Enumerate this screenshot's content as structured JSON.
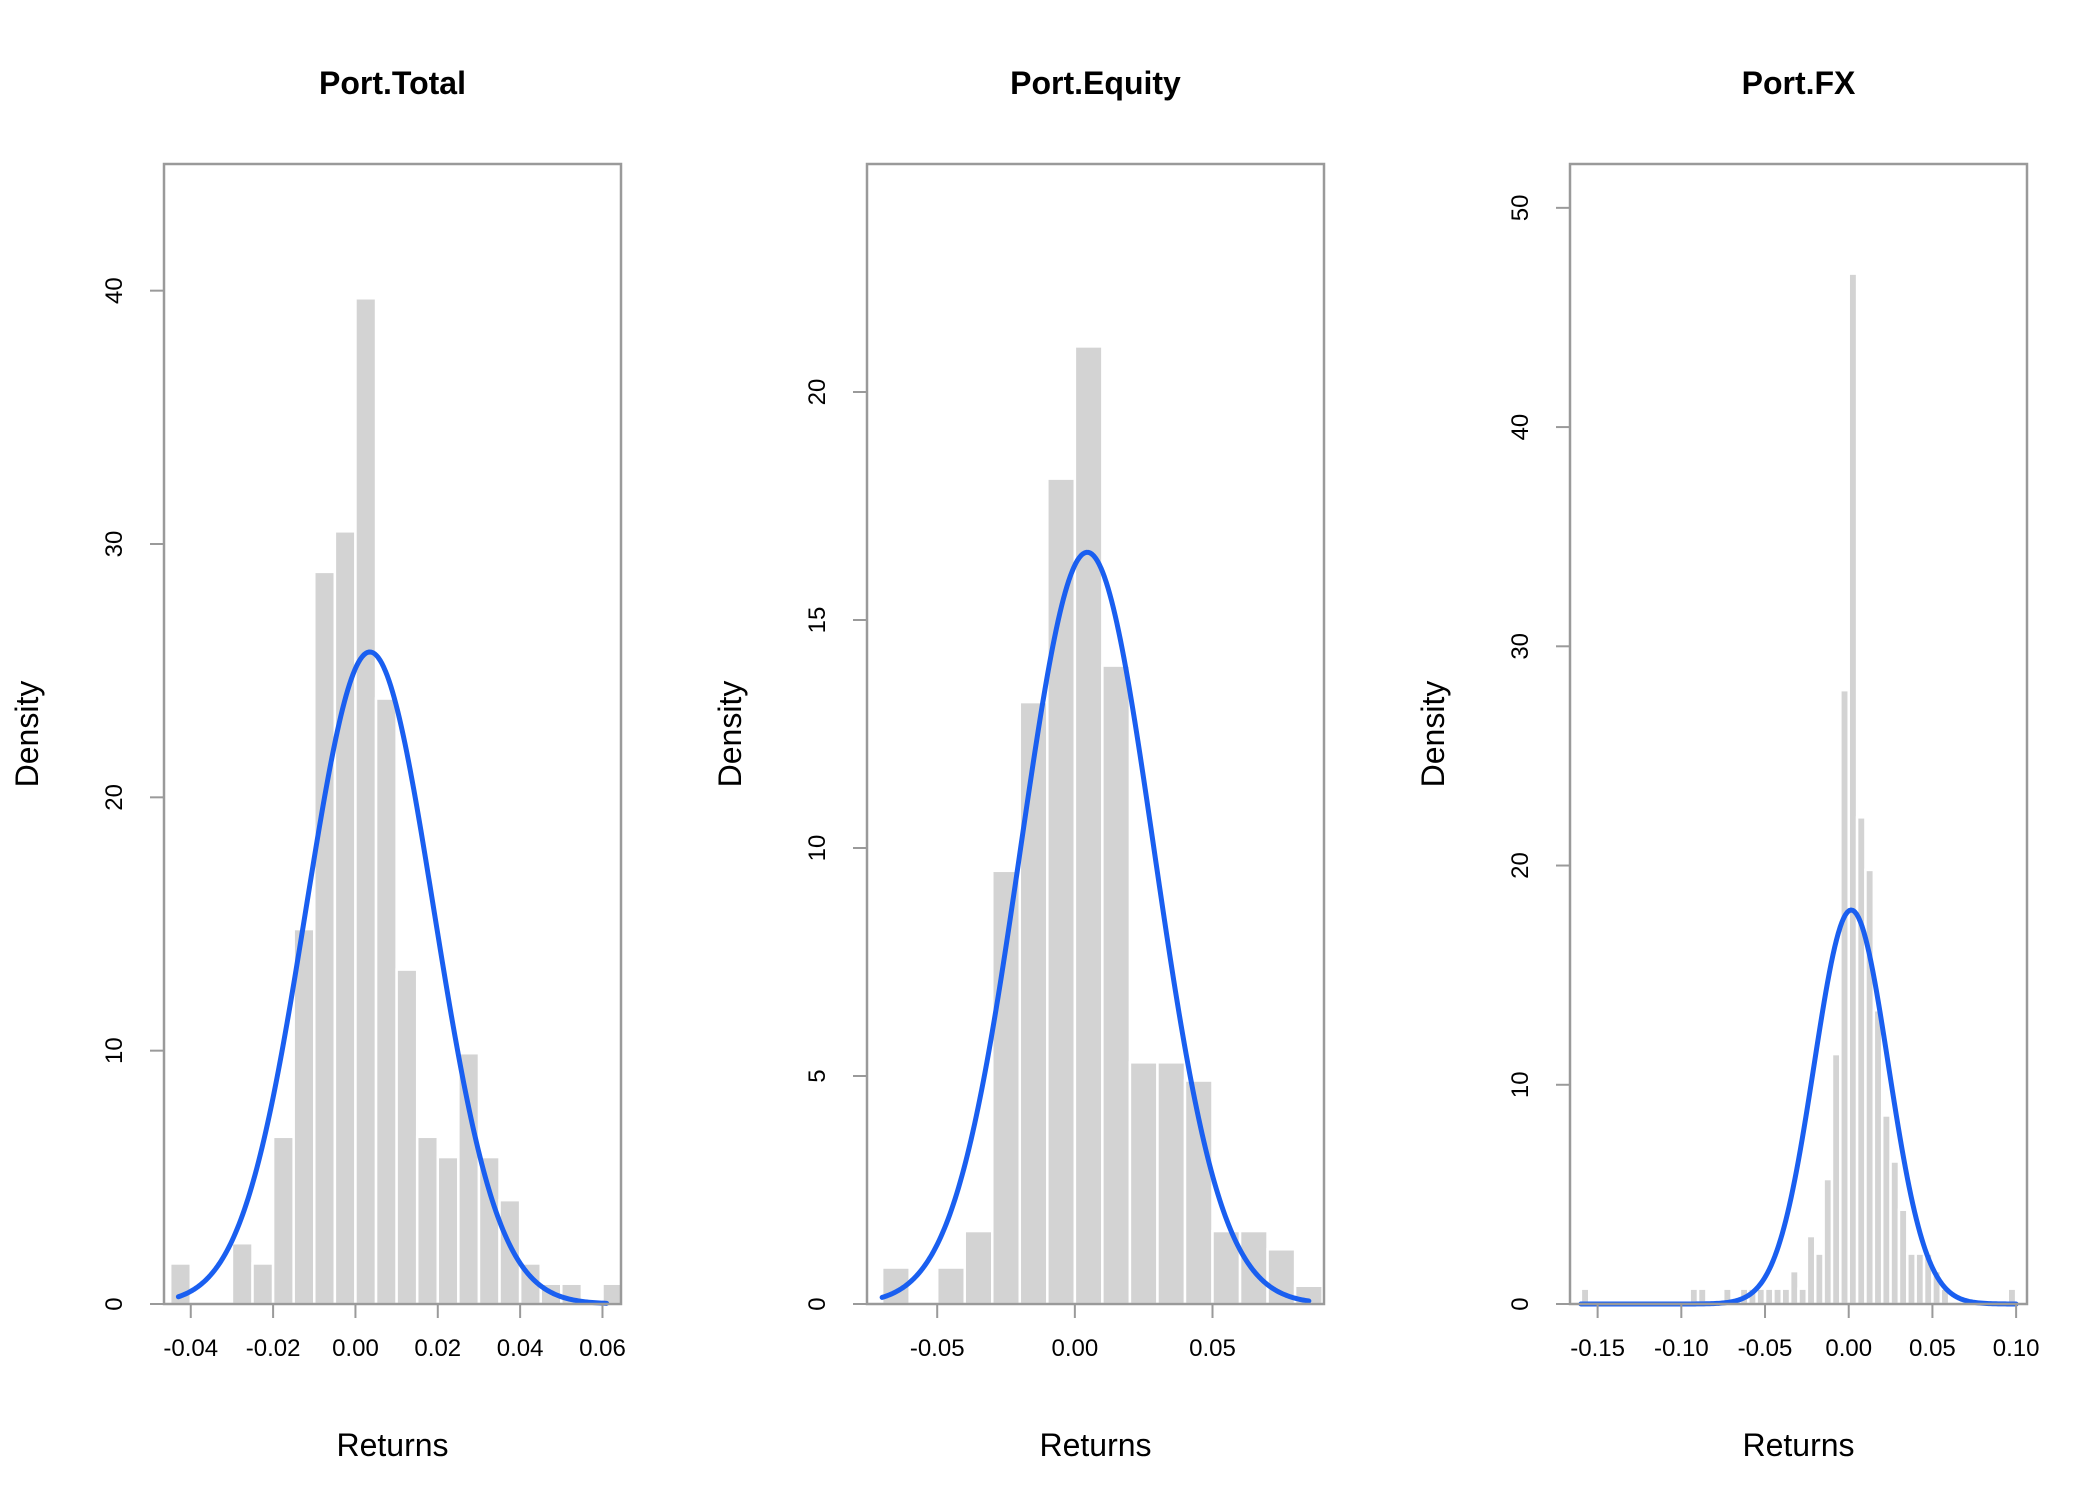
{
  "chart_data": [
    {
      "type": "bar",
      "title": "Port.Total",
      "xlabel": "Returns",
      "ylabel": "Density",
      "xlim": [
        -0.0465,
        0.0645
      ],
      "ylim": [
        0,
        45
      ],
      "x_ticks": [
        -0.04,
        -0.02,
        0.0,
        0.02,
        0.04,
        0.06
      ],
      "x_tick_labels": [
        "-0.04",
        "-0.02",
        "0.00",
        "0.02",
        "0.04",
        "0.06"
      ],
      "y_ticks": [
        0,
        10,
        20,
        30,
        40
      ],
      "y_tick_labels": [
        "0",
        "10",
        "20",
        "30",
        "40"
      ],
      "bin_width": 0.005,
      "bins": [
        {
          "x0": -0.045,
          "x1": -0.04,
          "density": 1.6
        },
        {
          "x0": -0.04,
          "x1": -0.035,
          "density": 0.0
        },
        {
          "x0": -0.035,
          "x1": -0.03,
          "density": 0.0
        },
        {
          "x0": -0.03,
          "x1": -0.025,
          "density": 2.4
        },
        {
          "x0": -0.025,
          "x1": -0.02,
          "density": 1.6
        },
        {
          "x0": -0.02,
          "x1": -0.015,
          "density": 6.6
        },
        {
          "x0": -0.015,
          "x1": -0.01,
          "density": 14.8
        },
        {
          "x0": -0.01,
          "x1": -0.005,
          "density": 28.9
        },
        {
          "x0": -0.005,
          "x1": 0.0,
          "density": 30.5
        },
        {
          "x0": 0.0,
          "x1": 0.005,
          "density": 39.7
        },
        {
          "x0": 0.005,
          "x1": 0.01,
          "density": 23.9
        },
        {
          "x0": 0.01,
          "x1": 0.015,
          "density": 13.2
        },
        {
          "x0": 0.015,
          "x1": 0.02,
          "density": 6.6
        },
        {
          "x0": 0.02,
          "x1": 0.025,
          "density": 5.8
        },
        {
          "x0": 0.025,
          "x1": 0.03,
          "density": 9.9
        },
        {
          "x0": 0.03,
          "x1": 0.035,
          "density": 5.8
        },
        {
          "x0": 0.035,
          "x1": 0.04,
          "density": 4.1
        },
        {
          "x0": 0.04,
          "x1": 0.045,
          "density": 1.6
        },
        {
          "x0": 0.045,
          "x1": 0.05,
          "density": 0.8
        },
        {
          "x0": 0.05,
          "x1": 0.055,
          "density": 0.8
        },
        {
          "x0": 0.055,
          "x1": 0.06,
          "density": 0.0
        },
        {
          "x0": 0.06,
          "x1": 0.065,
          "density": 0.8
        }
      ],
      "normal_fit": {
        "mean": 0.0035,
        "sd": 0.0155,
        "from": -0.043,
        "to": 0.061,
        "color": "#1a5ff0"
      }
    },
    {
      "type": "bar",
      "title": "Port.Equity",
      "xlabel": "Returns",
      "ylabel": "Density",
      "xlim": [
        -0.0755,
        0.0905
      ],
      "ylim": [
        0,
        25
      ],
      "x_ticks": [
        -0.05,
        0.0,
        0.05
      ],
      "x_tick_labels": [
        "-0.05",
        "0.00",
        "0.05"
      ],
      "y_ticks": [
        0,
        5,
        10,
        15,
        20
      ],
      "y_tick_labels": [
        "0",
        "5",
        "10",
        "15",
        "20"
      ],
      "bin_width": 0.01,
      "bins": [
        {
          "x0": -0.07,
          "x1": -0.06,
          "density": 0.8
        },
        {
          "x0": -0.06,
          "x1": -0.05,
          "density": 0.0
        },
        {
          "x0": -0.05,
          "x1": -0.04,
          "density": 0.8
        },
        {
          "x0": -0.04,
          "x1": -0.03,
          "density": 1.6
        },
        {
          "x0": -0.03,
          "x1": -0.02,
          "density": 9.5
        },
        {
          "x0": -0.02,
          "x1": -0.01,
          "density": 13.2
        },
        {
          "x0": -0.01,
          "x1": 0.0,
          "density": 18.1
        },
        {
          "x0": 0.0,
          "x1": 0.01,
          "density": 21.0
        },
        {
          "x0": 0.01,
          "x1": 0.02,
          "density": 14.0
        },
        {
          "x0": 0.02,
          "x1": 0.03,
          "density": 5.3
        },
        {
          "x0": 0.03,
          "x1": 0.04,
          "density": 5.3
        },
        {
          "x0": 0.04,
          "x1": 0.05,
          "density": 4.9
        },
        {
          "x0": 0.05,
          "x1": 0.06,
          "density": 1.6
        },
        {
          "x0": 0.06,
          "x1": 0.07,
          "density": 1.6
        },
        {
          "x0": 0.07,
          "x1": 0.08,
          "density": 1.2
        },
        {
          "x0": 0.08,
          "x1": 0.09,
          "density": 0.4
        }
      ],
      "normal_fit": {
        "mean": 0.0045,
        "sd": 0.0242,
        "from": -0.07,
        "to": 0.085,
        "color": "#1a5ff0"
      }
    },
    {
      "type": "bar",
      "title": "Port.FX",
      "xlabel": "Returns",
      "ylabel": "Density",
      "xlim": [
        -0.1665,
        0.1065
      ],
      "ylim": [
        0,
        52
      ],
      "x_ticks": [
        -0.15,
        -0.1,
        -0.05,
        0.0,
        0.05,
        0.1
      ],
      "x_tick_labels": [
        "-0.15",
        "-0.10",
        "-0.05",
        "0.00",
        "0.05",
        "0.10"
      ],
      "y_ticks": [
        0,
        10,
        20,
        30,
        40,
        50
      ],
      "y_tick_labels": [
        "0",
        "10",
        "20",
        "30",
        "40",
        "50"
      ],
      "bin_width": 0.005,
      "bins": [
        {
          "x0": -0.16,
          "x1": -0.155,
          "density": 0.7
        },
        {
          "x0": -0.095,
          "x1": -0.09,
          "density": 0.7
        },
        {
          "x0": -0.09,
          "x1": -0.085,
          "density": 0.7
        },
        {
          "x0": -0.075,
          "x1": -0.07,
          "density": 0.7
        },
        {
          "x0": -0.065,
          "x1": -0.06,
          "density": 0.7
        },
        {
          "x0": -0.06,
          "x1": -0.055,
          "density": 0.7
        },
        {
          "x0": -0.055,
          "x1": -0.05,
          "density": 0.7
        },
        {
          "x0": -0.05,
          "x1": -0.045,
          "density": 0.7
        },
        {
          "x0": -0.045,
          "x1": -0.04,
          "density": 0.7
        },
        {
          "x0": -0.04,
          "x1": -0.035,
          "density": 0.7
        },
        {
          "x0": -0.035,
          "x1": -0.03,
          "density": 1.5
        },
        {
          "x0": -0.03,
          "x1": -0.025,
          "density": 0.7
        },
        {
          "x0": -0.025,
          "x1": -0.02,
          "density": 3.1
        },
        {
          "x0": -0.02,
          "x1": -0.015,
          "density": 2.3
        },
        {
          "x0": -0.015,
          "x1": -0.01,
          "density": 5.7
        },
        {
          "x0": -0.01,
          "x1": -0.005,
          "density": 11.4
        },
        {
          "x0": -0.005,
          "x1": 0.0,
          "density": 28.0
        },
        {
          "x0": 0.0,
          "x1": 0.005,
          "density": 47.0
        },
        {
          "x0": 0.005,
          "x1": 0.01,
          "density": 22.2
        },
        {
          "x0": 0.01,
          "x1": 0.015,
          "density": 19.8
        },
        {
          "x0": 0.015,
          "x1": 0.02,
          "density": 13.4
        },
        {
          "x0": 0.02,
          "x1": 0.025,
          "density": 8.6
        },
        {
          "x0": 0.025,
          "x1": 0.03,
          "density": 6.5
        },
        {
          "x0": 0.03,
          "x1": 0.035,
          "density": 4.3
        },
        {
          "x0": 0.035,
          "x1": 0.04,
          "density": 2.3
        },
        {
          "x0": 0.04,
          "x1": 0.045,
          "density": 2.3
        },
        {
          "x0": 0.045,
          "x1": 0.05,
          "density": 2.3
        },
        {
          "x0": 0.05,
          "x1": 0.055,
          "density": 1.5
        },
        {
          "x0": 0.055,
          "x1": 0.06,
          "density": 0.7
        },
        {
          "x0": 0.095,
          "x1": 0.1,
          "density": 0.7
        }
      ],
      "normal_fit": {
        "mean": 0.0015,
        "sd": 0.0222,
        "from": -0.16,
        "to": 0.1,
        "color": "#1a5ff0"
      }
    }
  ]
}
